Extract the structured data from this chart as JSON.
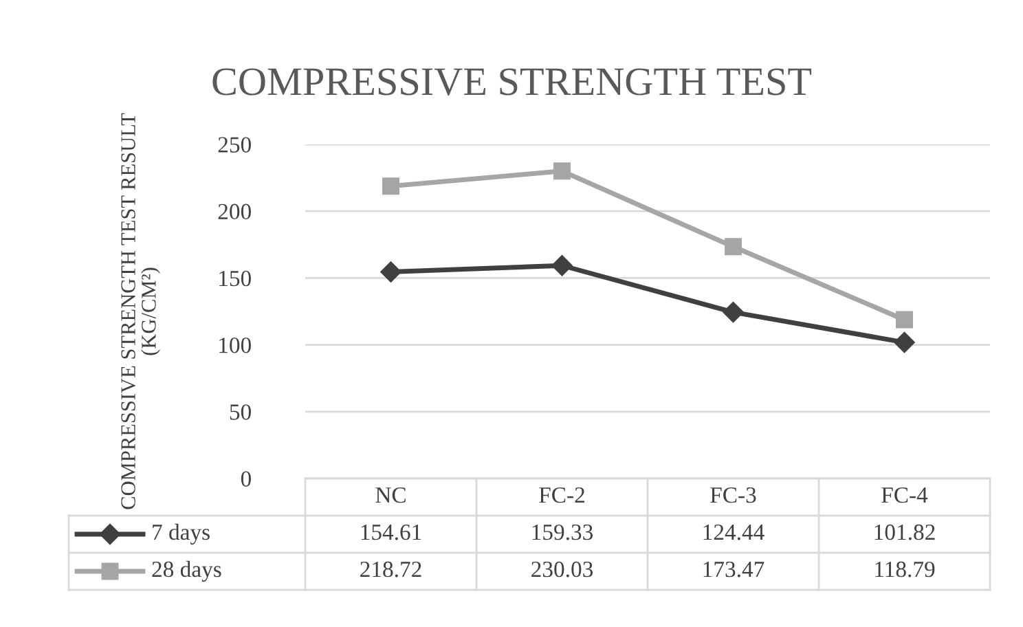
{
  "chart_data": {
    "type": "line",
    "title": "COMPRESSIVE STRENGTH TEST",
    "ylabel": "COMPRESSIVE STRENGTH TEST RESULT\n(KG/CM²)",
    "categories": [
      "NC",
      "FC-2",
      "FC-3",
      "FC-4"
    ],
    "series": [
      {
        "name": "7 days",
        "color": "#404040",
        "marker": "diamond",
        "values": [
          154.61,
          159.33,
          124.44,
          101.82
        ]
      },
      {
        "name": "28 days",
        "color": "#a6a6a6",
        "marker": "square",
        "values": [
          218.72,
          230.03,
          173.47,
          118.79
        ]
      }
    ],
    "ylim": [
      0,
      250
    ],
    "yticks": [
      0,
      50,
      100,
      150,
      200,
      250
    ],
    "grid": "y",
    "legend": "bottom",
    "data_labels": true
  }
}
